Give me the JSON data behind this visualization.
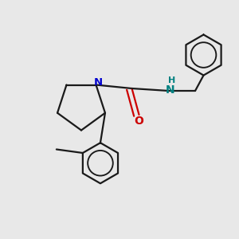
{
  "bg_color": "#e8e8e8",
  "bond_color": "#1a1a1a",
  "nitrogen_color": "#0000cd",
  "oxygen_color": "#cc0000",
  "nh_color": "#008080",
  "line_width": 1.6,
  "figsize": [
    3.0,
    3.0
  ],
  "dpi": 100,
  "xlim": [
    0,
    10
  ],
  "ylim": [
    0,
    10
  ]
}
